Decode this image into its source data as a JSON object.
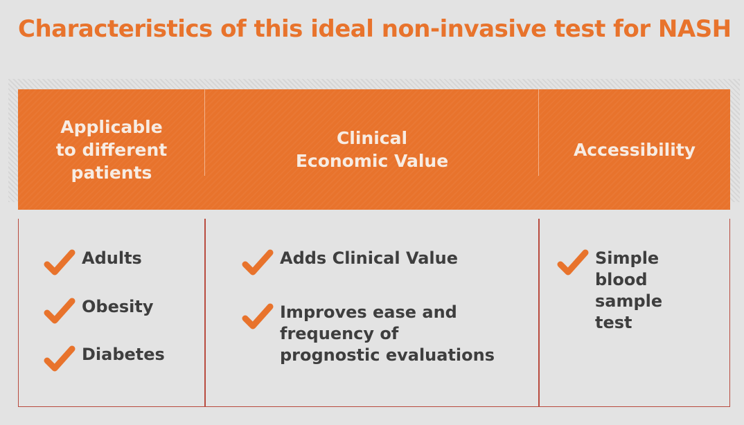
{
  "title": "Characteristics of this ideal non-invasive test for NASH",
  "columns": [
    {
      "header": "Applicable\nto different\npatients",
      "items": [
        "Adults",
        "Obesity",
        "Diabetes"
      ]
    },
    {
      "header": "Clinical\nEconomic Value",
      "items": [
        "Adds Clinical Value",
        "Improves ease and\nfrequency of\nprognostic evaluations"
      ]
    },
    {
      "header": "Accessibility",
      "items": [
        "Simple\nblood\nsample\ntest"
      ]
    }
  ],
  "colors": {
    "accent": "#e8732c",
    "divider": "#b84a3e",
    "text": "#3e3e3e",
    "background": "#e3e3e3"
  },
  "icons": {
    "check": "checkmark-icon"
  }
}
